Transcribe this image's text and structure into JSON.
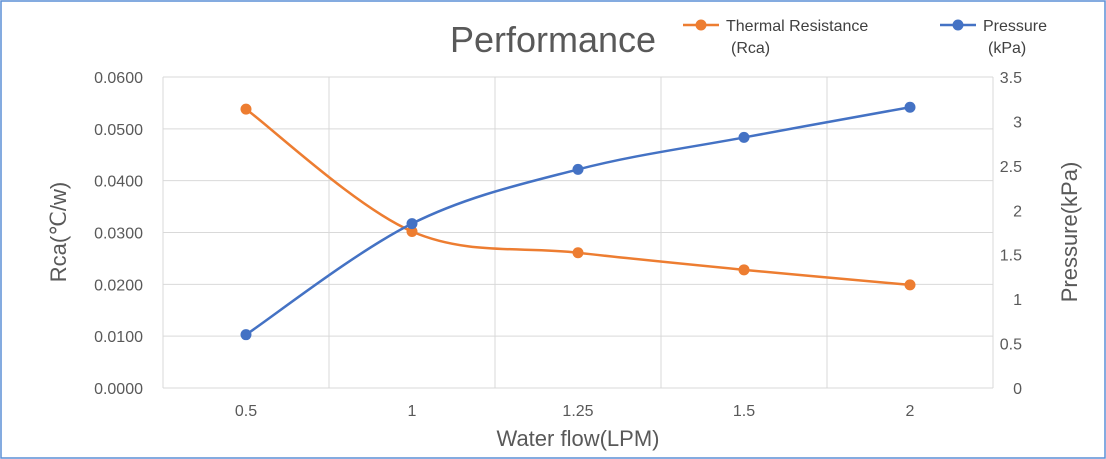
{
  "chart_data": {
    "type": "line",
    "title": "Performance",
    "xlabel": "Water flow(LPM)",
    "ylabel": "Rca(℃/w)",
    "y2label": "Pressure(kPa)",
    "categories": [
      "0.5",
      "1",
      "1.25",
      "1.5",
      "2"
    ],
    "ylim": [
      0,
      0.06
    ],
    "y2lim": [
      0,
      3.5
    ],
    "yticks": [
      "0.0000",
      "0.0100",
      "0.0200",
      "0.0300",
      "0.0400",
      "0.0500",
      "0.0600"
    ],
    "y2ticks": [
      "0",
      "0.5",
      "1",
      "1.5",
      "2",
      "2.5",
      "3",
      "3.5"
    ],
    "series": [
      {
        "name": "Thermal Resistance",
        "legend_line1": "Thermal Resistance",
        "legend_line2": "(Rca)",
        "axis": "left",
        "color": "#ed7d31",
        "values": [
          0.0538,
          0.0302,
          0.0261,
          0.0228,
          0.0199
        ]
      },
      {
        "name": "Pressure",
        "legend_line1": "Pressure",
        "legend_line2": "(kPa)",
        "axis": "right",
        "color": "#4472c4",
        "values": [
          0.6,
          1.85,
          2.46,
          2.82,
          3.16
        ]
      }
    ],
    "legend_position": "top-right"
  }
}
